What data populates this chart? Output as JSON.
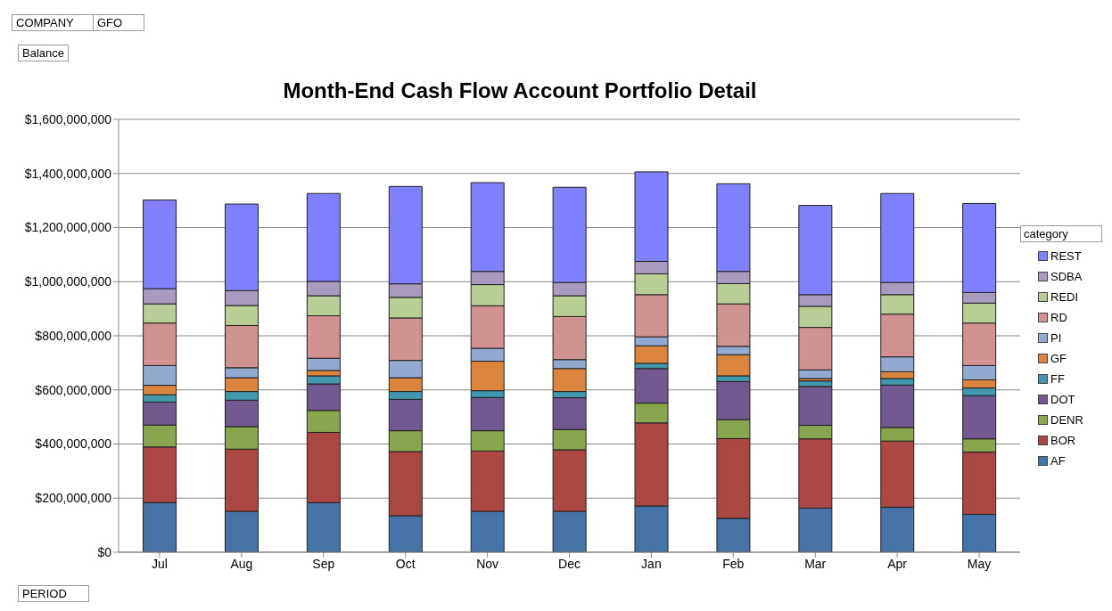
{
  "chart_data": {
    "type": "bar",
    "title": "Month-End Cash Flow Account Portfolio Detail",
    "stacked": true,
    "legend": "right",
    "legend_title": "category",
    "grid": "y",
    "annotations": [
      "COMPANY",
      "GFO",
      "Balance",
      "PERIOD"
    ],
    "categories": [
      "Jul",
      "Aug",
      "Sep",
      "Oct",
      "Nov",
      "Dec",
      "Jan",
      "Feb",
      "Mar",
      "Apr",
      "May"
    ],
    "ylim": [
      0,
      1600000000
    ],
    "yticks": [
      {
        "value": 0,
        "label": "$0"
      },
      {
        "value": 200000000,
        "label": "$200,000,000"
      },
      {
        "value": 400000000,
        "label": "$400,000,000"
      },
      {
        "value": 600000000,
        "label": "$600,000,000"
      },
      {
        "value": 800000000,
        "label": "$800,000,000"
      },
      {
        "value": 1000000000,
        "label": "$1,000,000,000"
      },
      {
        "value": 1200000000,
        "label": "$1,200,000,000"
      },
      {
        "value": 1400000000,
        "label": "$1,400,000,000"
      },
      {
        "value": 1600000000,
        "label": "$1,600,000,000"
      }
    ],
    "series": [
      {
        "name": "AF",
        "color": "#4572a7",
        "values": [
          183000000,
          151000000,
          183000000,
          135000000,
          151000000,
          151000000,
          171000000,
          125000000,
          163000000,
          166000000,
          140000000
        ]
      },
      {
        "name": "BOR",
        "color": "#aa4643",
        "values": [
          206000000,
          230000000,
          260000000,
          237000000,
          223000000,
          228000000,
          307000000,
          295000000,
          256000000,
          245000000,
          230000000
        ]
      },
      {
        "name": "DENR",
        "color": "#89a54e",
        "values": [
          81000000,
          83000000,
          81000000,
          77000000,
          75000000,
          74000000,
          73000000,
          70000000,
          50000000,
          50000000,
          49000000
        ]
      },
      {
        "name": "DOT",
        "color": "#71588f",
        "values": [
          85000000,
          98000000,
          98000000,
          116000000,
          123000000,
          118000000,
          128000000,
          141000000,
          144000000,
          157000000,
          160000000
        ]
      },
      {
        "name": "FF",
        "color": "#4198af",
        "values": [
          27000000,
          32000000,
          30000000,
          29000000,
          25000000,
          23000000,
          19000000,
          21000000,
          20000000,
          24000000,
          28000000
        ]
      },
      {
        "name": "GF",
        "color": "#db843d",
        "values": [
          35000000,
          51000000,
          20000000,
          51000000,
          109000000,
          85000000,
          65000000,
          78000000,
          9000000,
          25000000,
          30000000
        ]
      },
      {
        "name": "PI",
        "color": "#93a9cf",
        "values": [
          73000000,
          37000000,
          45000000,
          64000000,
          48000000,
          33000000,
          33000000,
          31000000,
          32000000,
          55000000,
          53000000
        ]
      },
      {
        "name": "RD",
        "color": "#d19392",
        "values": [
          157000000,
          156000000,
          157000000,
          157000000,
          157000000,
          159000000,
          156000000,
          157000000,
          157000000,
          158000000,
          157000000
        ]
      },
      {
        "name": "REDI",
        "color": "#b9cd96",
        "values": [
          71000000,
          74000000,
          74000000,
          76000000,
          78000000,
          77000000,
          77000000,
          75000000,
          78000000,
          72000000,
          74000000
        ]
      },
      {
        "name": "SDBA",
        "color": "#a99bbd",
        "values": [
          56000000,
          55000000,
          53000000,
          50000000,
          49000000,
          49000000,
          46000000,
          45000000,
          43000000,
          45000000,
          39000000
        ]
      },
      {
        "name": "REST",
        "color": "#8080ff",
        "values": [
          328000000,
          320000000,
          325000000,
          360000000,
          328000000,
          352000000,
          331000000,
          324000000,
          330000000,
          329000000,
          329000000
        ]
      }
    ]
  }
}
